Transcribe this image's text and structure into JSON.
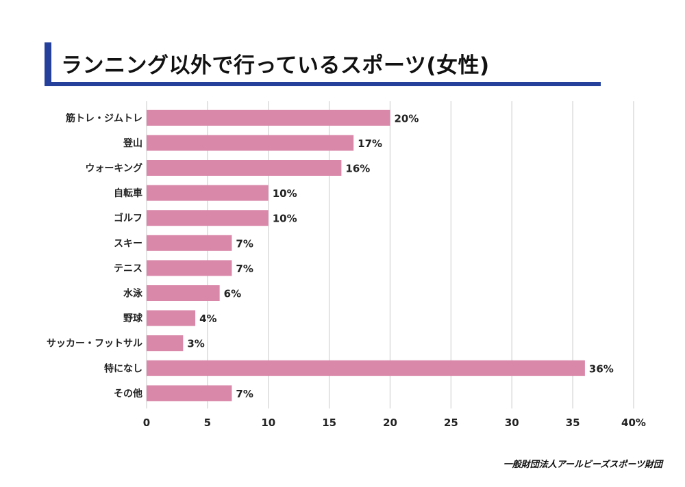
{
  "header": {
    "title": "ランニング以外で行っているスポーツ(女性)"
  },
  "footer": {
    "source": "一般財団法人アールビーズスポーツ財団"
  },
  "colors": {
    "bar": "#d988a9",
    "accent": "#24409b",
    "grid": "#d5d5d5"
  },
  "chart_data": {
    "type": "bar",
    "orientation": "horizontal",
    "title": "ランニング以外で行っているスポーツ(女性)",
    "categories": [
      "筋トレ・ジムトレ",
      "登山",
      "ウォーキング",
      "自転車",
      "ゴルフ",
      "スキー",
      "テニス",
      "水泳",
      "野球",
      "サッカー・フットサル",
      "特になし",
      "その他"
    ],
    "values": [
      20,
      17,
      16,
      10,
      10,
      7,
      7,
      6,
      4,
      3,
      36,
      7
    ],
    "value_labels": [
      "20%",
      "17%",
      "16%",
      "10%",
      "10%",
      "7%",
      "7%",
      "6%",
      "4%",
      "3%",
      "36%",
      "7%"
    ],
    "xlim": [
      0,
      40
    ],
    "xticks": [
      0,
      5,
      10,
      15,
      20,
      25,
      30,
      35,
      40
    ],
    "xtick_labels": [
      "0",
      "5",
      "10",
      "15",
      "20",
      "25",
      "30",
      "35",
      "40%"
    ],
    "grid": true,
    "legend": "none"
  }
}
